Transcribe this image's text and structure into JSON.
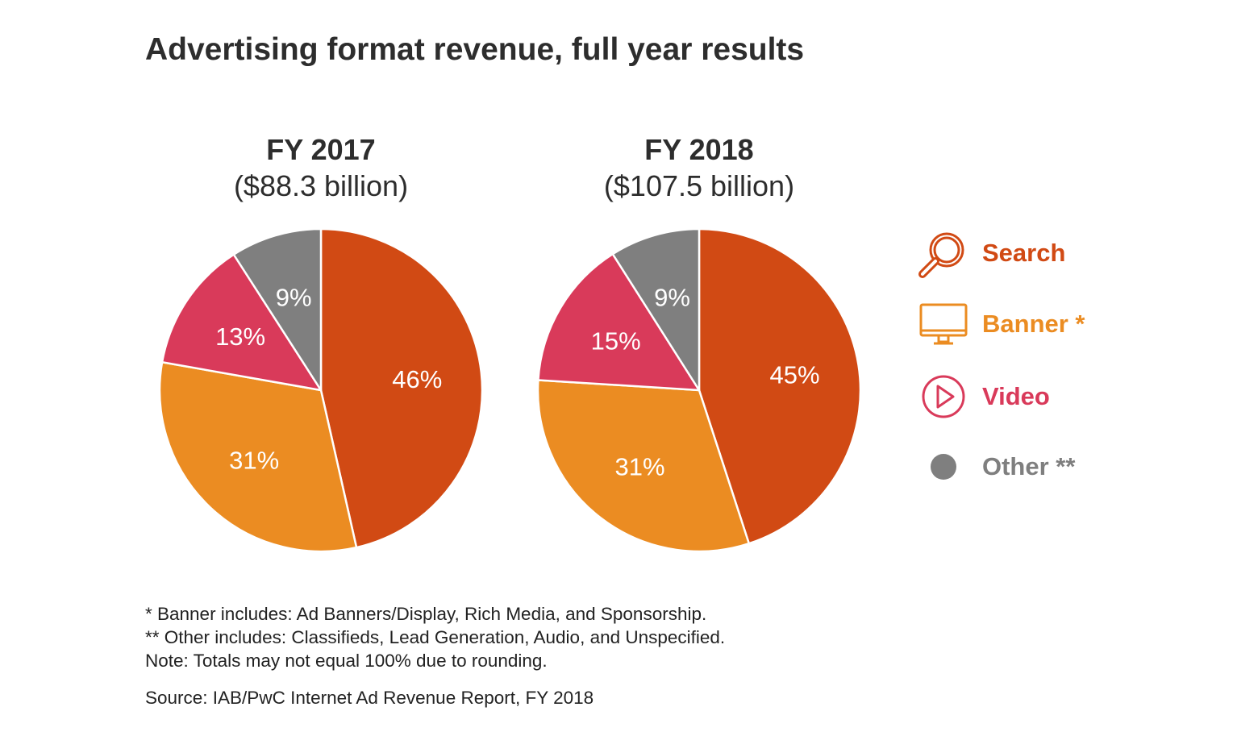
{
  "title": "Advertising format revenue, full year results",
  "colors": {
    "search": "#d14a14",
    "banner": "#eb8c22",
    "video": "#d93a5a",
    "other": "#7f7f7f"
  },
  "legend": [
    {
      "key": "search",
      "label": "Search",
      "icon": "magnifier-icon"
    },
    {
      "key": "banner",
      "label": "Banner *",
      "icon": "monitor-icon"
    },
    {
      "key": "video",
      "label": "Video",
      "icon": "play-icon"
    },
    {
      "key": "other",
      "label": "Other **",
      "icon": "dot-icon"
    }
  ],
  "chart_data": [
    {
      "type": "pie",
      "title": "FY 2017",
      "subtitle": "($88.3 billion)",
      "slices": [
        {
          "name": "Search",
          "key": "search",
          "value": 46,
          "label": "46%"
        },
        {
          "name": "Banner",
          "key": "banner",
          "value": 31,
          "label": "31%"
        },
        {
          "name": "Video",
          "key": "video",
          "value": 13,
          "label": "13%"
        },
        {
          "name": "Other",
          "key": "other",
          "value": 9,
          "label": "9%"
        }
      ]
    },
    {
      "type": "pie",
      "title": "FY 2018",
      "subtitle": "($107.5 billion)",
      "slices": [
        {
          "name": "Search",
          "key": "search",
          "value": 45,
          "label": "45%"
        },
        {
          "name": "Banner",
          "key": "banner",
          "value": 31,
          "label": "31%"
        },
        {
          "name": "Video",
          "key": "video",
          "value": 15,
          "label": "15%"
        },
        {
          "name": "Other",
          "key": "other",
          "value": 9,
          "label": "9%"
        }
      ]
    }
  ],
  "notes": [
    "* Banner includes: Ad Banners/Display, Rich Media, and Sponsorship.",
    "** Other includes: Classifieds, Lead Generation, Audio, and Unspecified.",
    "Note: Totals may not equal 100% due to rounding."
  ],
  "source": "Source: IAB/PwC Internet Ad Revenue Report,  FY 2018"
}
